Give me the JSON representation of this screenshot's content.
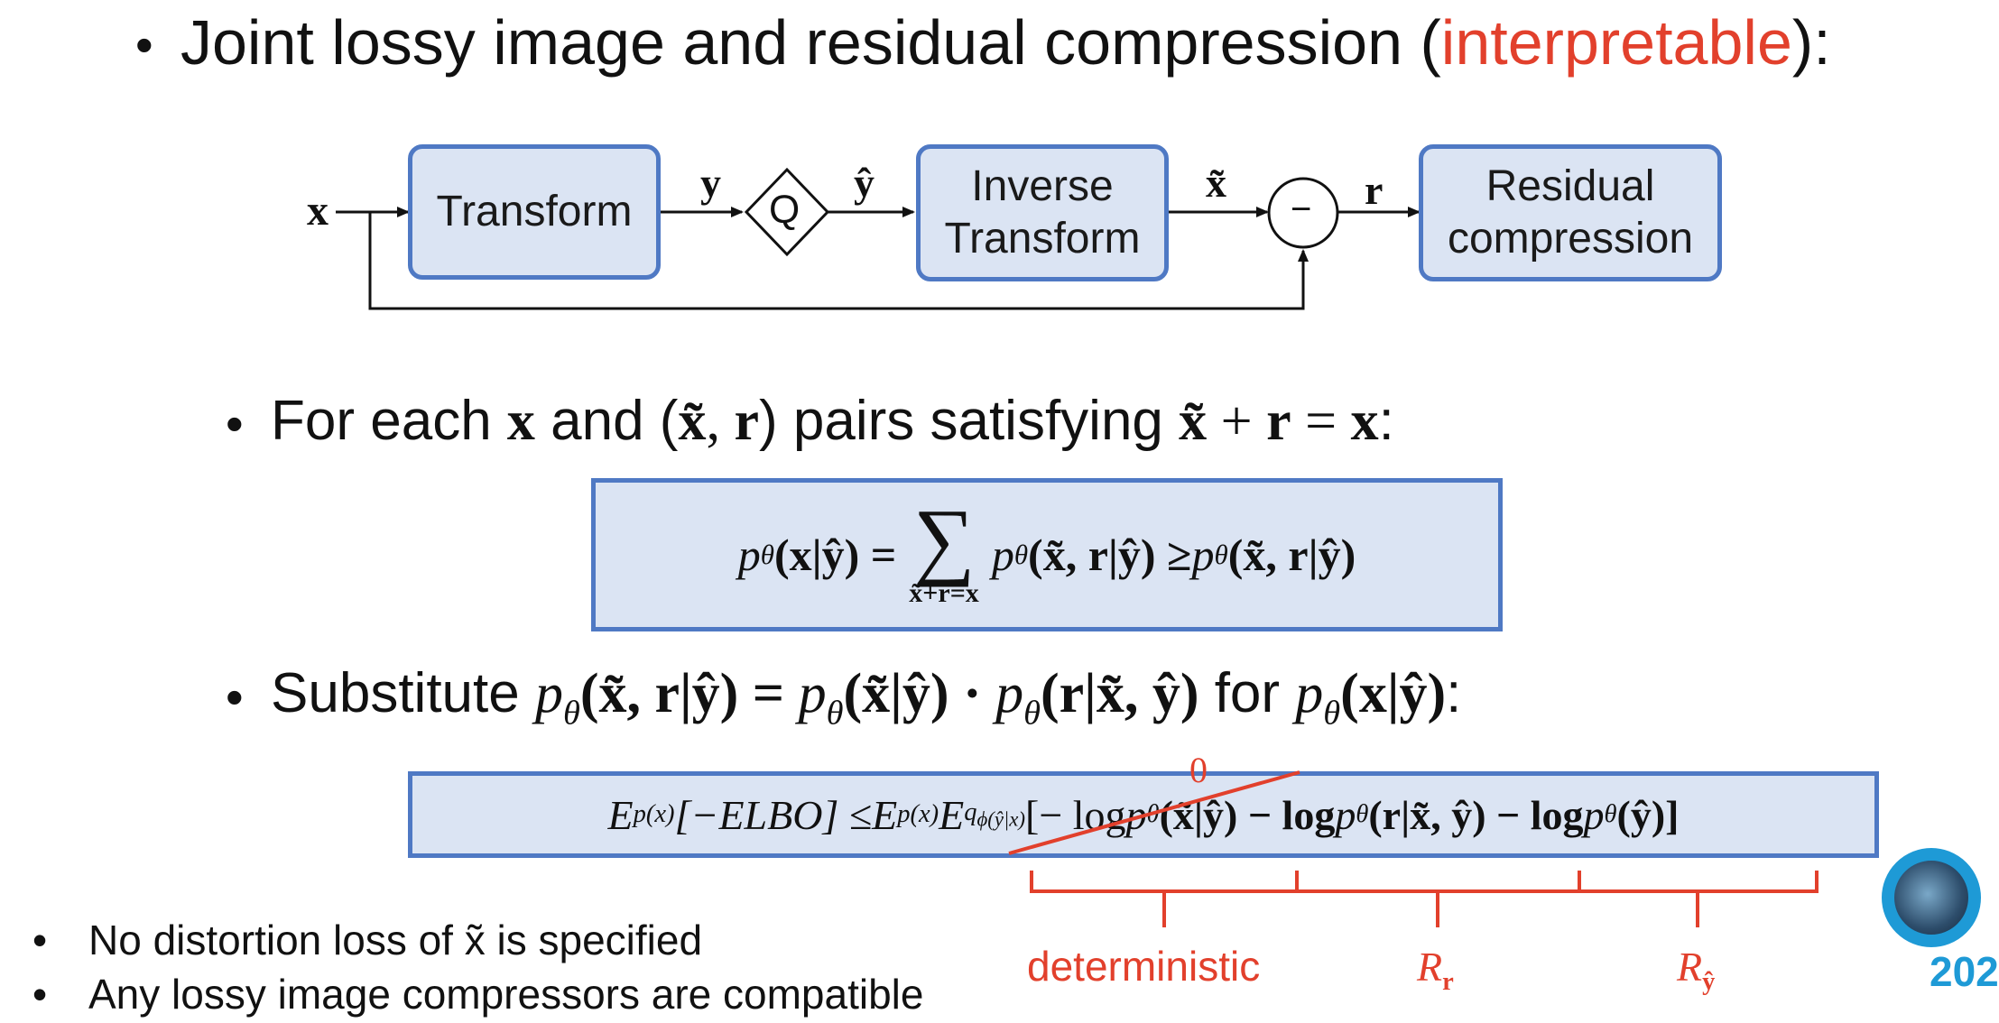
{
  "title": {
    "prefix": "Joint lossy image and residual compression (",
    "highlight": "interpretable",
    "suffix": "):"
  },
  "diagram": {
    "input_label": "x",
    "transform": "Transform",
    "y_label": "y",
    "quantizer": "Q",
    "yhat_label": "ŷ",
    "inverse_line1": "Inverse",
    "inverse_line2": "Transform",
    "xtilde_label": "x̃",
    "minus": "−",
    "r_label": "r",
    "residual_line1": "Residual",
    "residual_line2": "compression"
  },
  "bullet2": {
    "t1": "For each ",
    "x": "x",
    "t2": " and (",
    "xt": "x̃",
    "comma": ", ",
    "r": "r",
    "t3": ") pairs satisfying ",
    "xt2": "x̃",
    "plus": " + ",
    "r2": "r",
    "eq": " = ",
    "x2": "x",
    "t4": ":"
  },
  "eq1": {
    "lhs": "p",
    "sub": "θ",
    "arg1": "(x|ŷ) = ",
    "sum": "∑",
    "sumsub": "x̃+r=x",
    "rhs1": "(x̃, r|ŷ) ≥ ",
    "rhs2": "(x̃, r|ŷ)"
  },
  "bullet3": {
    "t1": "Substitute ",
    "f1": "(x̃, r|ŷ) = ",
    "f2": "(x̃|ŷ) · ",
    "f3": "(r|x̃, ŷ)",
    "t2": " for ",
    "f4": "(x|ŷ)",
    "t3": ":"
  },
  "eq2": {
    "E": "E",
    "px": "p(x)",
    "elbo": "[−ELBO] ≤ ",
    "q": "q",
    "qsub": "ϕ(ŷ|x)",
    "t1": "[− log ",
    "t2": "(x̃|ŷ) − log ",
    "t3": "(r|x̃, ŷ) − log ",
    "t4": " (ŷ)]",
    "zero": "0"
  },
  "braces": {
    "deterministic": "deterministic",
    "Rr": "R",
    "Rr_sub": "r",
    "Ry": "R",
    "Ry_sub": "ŷ"
  },
  "notes": [
    "No distortion loss of x̃ is specified",
    "Any lossy image compressors are compatible"
  ],
  "logo_text": "202",
  "colors": {
    "box_fill": "#dbe4f3",
    "box_border": "#4f79c4",
    "highlight_red": "#e2402c",
    "logo_blue": "#1e9ad6"
  }
}
